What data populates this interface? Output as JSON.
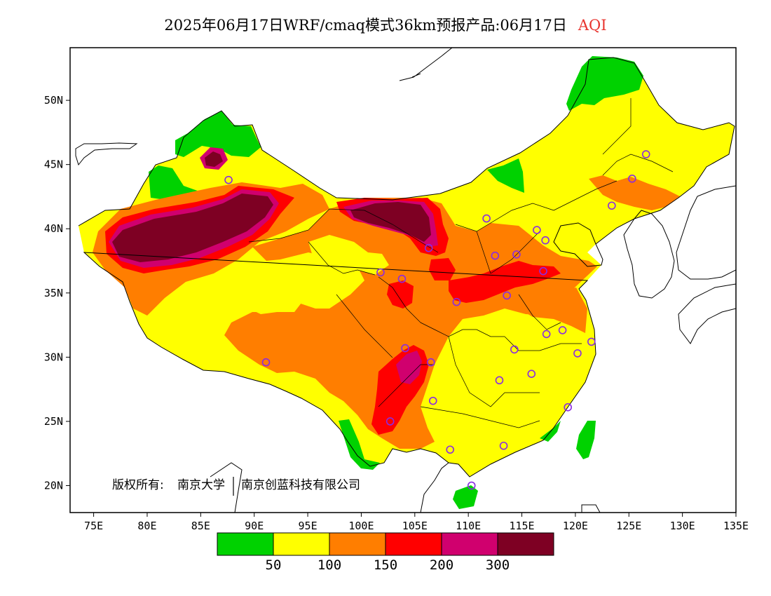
{
  "title": {
    "main": "2025年06月17日WRF/cmaq模式36km预报产品:06月17日",
    "variable": "AQI",
    "variable_color": "#e8342e"
  },
  "copyright": {
    "prefix": "版权所有:",
    "owner1": "南京大学",
    "owner2": "南京创蓝科技有限公司"
  },
  "axes": {
    "x_ticks": [
      "75E",
      "80E",
      "85E",
      "90E",
      "95E",
      "100E",
      "105E",
      "110E",
      "115E",
      "120E",
      "125E",
      "130E",
      "135E"
    ],
    "y_ticks": [
      "50N",
      "45N",
      "40N",
      "35N",
      "30N",
      "25N",
      "20N"
    ]
  },
  "colorbar": {
    "bins": [
      {
        "color": "#00d200"
      },
      {
        "color": "#ffff00"
      },
      {
        "color": "#ff7e00"
      },
      {
        "color": "#ff0000"
      },
      {
        "color": "#d0006e"
      },
      {
        "color": "#7e0023"
      }
    ],
    "labels": [
      "50",
      "100",
      "150",
      "200",
      "300"
    ]
  },
  "stations": [
    {
      "lon": 87.6,
      "lat": 43.8
    },
    {
      "lon": 91.1,
      "lat": 29.6
    },
    {
      "lon": 101.8,
      "lat": 36.6
    },
    {
      "lon": 103.8,
      "lat": 36.1
    },
    {
      "lon": 106.3,
      "lat": 38.5
    },
    {
      "lon": 111.7,
      "lat": 40.8
    },
    {
      "lon": 112.5,
      "lat": 37.9
    },
    {
      "lon": 114.5,
      "lat": 38.0
    },
    {
      "lon": 116.4,
      "lat": 39.9
    },
    {
      "lon": 117.2,
      "lat": 39.1
    },
    {
      "lon": 117.0,
      "lat": 36.7
    },
    {
      "lon": 113.6,
      "lat": 34.8
    },
    {
      "lon": 108.9,
      "lat": 34.3
    },
    {
      "lon": 104.1,
      "lat": 30.7
    },
    {
      "lon": 106.5,
      "lat": 29.6
    },
    {
      "lon": 106.7,
      "lat": 26.6
    },
    {
      "lon": 102.7,
      "lat": 25.0
    },
    {
      "lon": 108.3,
      "lat": 22.8
    },
    {
      "lon": 113.3,
      "lat": 23.1
    },
    {
      "lon": 110.3,
      "lat": 20.0
    },
    {
      "lon": 112.9,
      "lat": 28.2
    },
    {
      "lon": 114.3,
      "lat": 30.6
    },
    {
      "lon": 115.9,
      "lat": 28.7
    },
    {
      "lon": 117.3,
      "lat": 31.8
    },
    {
      "lon": 118.8,
      "lat": 32.1
    },
    {
      "lon": 120.2,
      "lat": 30.3
    },
    {
      "lon": 121.5,
      "lat": 31.2
    },
    {
      "lon": 119.3,
      "lat": 26.1
    },
    {
      "lon": 123.4,
      "lat": 41.8
    },
    {
      "lon": 125.3,
      "lat": 43.9
    },
    {
      "lon": 126.6,
      "lat": 45.8
    }
  ]
}
